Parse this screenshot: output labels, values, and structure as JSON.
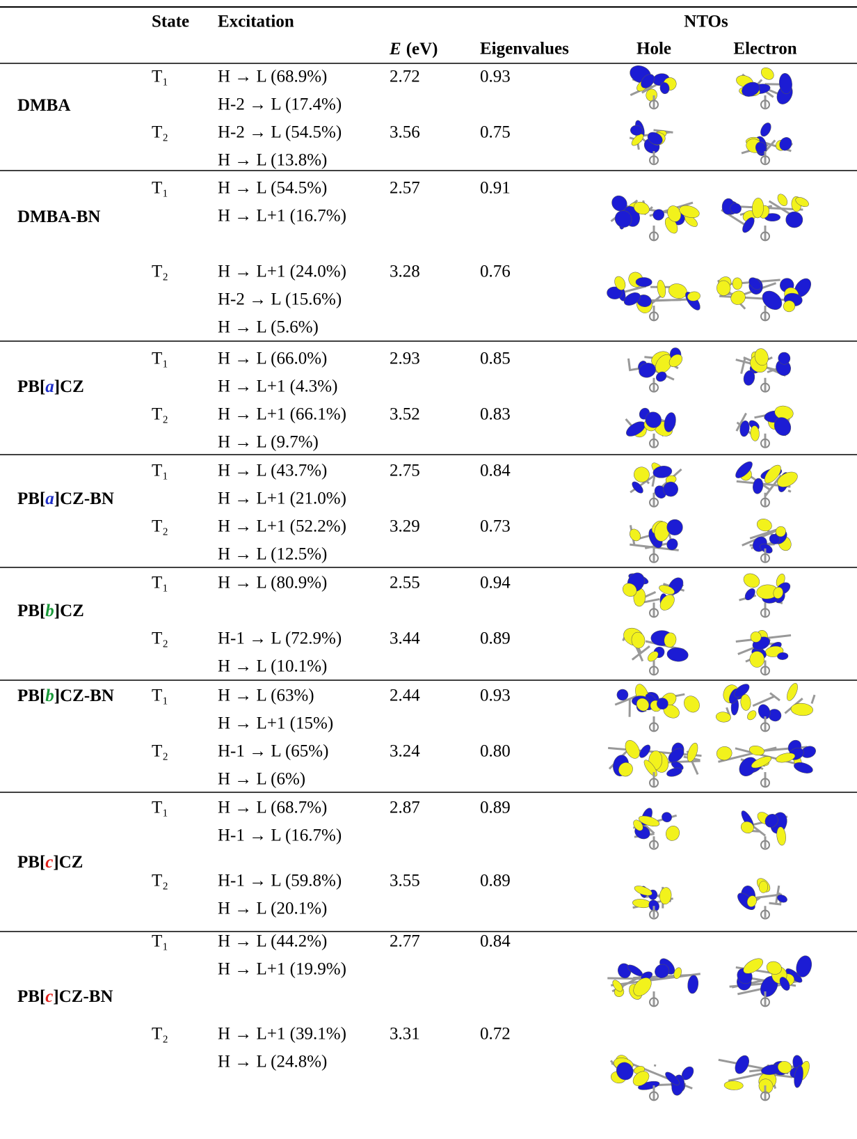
{
  "header": {
    "state": "State",
    "excitation": "Excitation",
    "e_symbol": "E",
    "e_unit": "(eV)",
    "eigenvalues": "Eigenvalues",
    "ntos": "NTOs",
    "hole": "Hole",
    "electron": "Electron"
  },
  "table": {
    "rows": [
      {
        "name": [
          {
            "text": "DMBA"
          }
        ],
        "states": [
          {
            "state": "T₁",
            "excitations": [
              "H → L (68.9%)",
              "H-2 → L (17.4%)"
            ],
            "energy": "2.72",
            "eigenvalue": "0.93"
          },
          {
            "state": "T₂",
            "excitations": [
              "H-2 → L (54.5%)",
              "H → L (13.8%)"
            ],
            "energy": "3.56",
            "eigenvalue": "0.75"
          }
        ]
      },
      {
        "name": [
          {
            "text": "DMBA-BN"
          }
        ],
        "states": [
          {
            "state": "T₁",
            "excitations": [
              "H → L (54.5%)",
              "H → L+1 (16.7%)"
            ],
            "energy": "2.57",
            "eigenvalue": "0.91"
          },
          {
            "state": "T₂",
            "excitations": [
              "H → L+1 (24.0%)",
              "H-2 → L (15.6%)",
              "H → L (5.6%)"
            ],
            "energy": "3.28",
            "eigenvalue": "0.76"
          }
        ]
      },
      {
        "name": [
          {
            "text": "PB["
          },
          {
            "text": "a",
            "color": "#1f2fc8",
            "italic": true
          },
          {
            "text": "]CZ"
          }
        ],
        "states": [
          {
            "state": "T₁",
            "excitations": [
              "H → L (66.0%)",
              "H → L+1 (4.3%)"
            ],
            "energy": "2.93",
            "eigenvalue": "0.85"
          },
          {
            "state": "T₂",
            "excitations": [
              "H → L+1 (66.1%)",
              "H → L (9.7%)"
            ],
            "energy": "3.52",
            "eigenvalue": "0.83"
          }
        ]
      },
      {
        "name": [
          {
            "text": "PB["
          },
          {
            "text": "a",
            "color": "#1f2fc8",
            "italic": true
          },
          {
            "text": "]CZ-BN"
          }
        ],
        "states": [
          {
            "state": "T₁",
            "excitations": [
              "H → L (43.7%)",
              "H → L+1 (21.0%)"
            ],
            "energy": "2.75",
            "eigenvalue": "0.84"
          },
          {
            "state": "T₂",
            "excitations": [
              "H → L+1 (52.2%)",
              "H → L (12.5%)"
            ],
            "energy": "3.29",
            "eigenvalue": "0.73"
          }
        ]
      },
      {
        "name": [
          {
            "text": "PB["
          },
          {
            "text": "b",
            "color": "#1a9a3a",
            "italic": true
          },
          {
            "text": "]CZ"
          }
        ],
        "states": [
          {
            "state": "T₁",
            "excitations": [
              "H → L (80.9%)"
            ],
            "energy": "2.55",
            "eigenvalue": "0.94"
          },
          {
            "state": "T₂",
            "excitations": [
              "H-1 → L (72.9%)",
              "H → L (10.1%)"
            ],
            "energy": "3.44",
            "eigenvalue": "0.89"
          }
        ]
      },
      {
        "name": [
          {
            "text": "PB["
          },
          {
            "text": "b",
            "color": "#1a9a3a",
            "italic": true
          },
          {
            "text": "]CZ-BN"
          }
        ],
        "states": [
          {
            "state": "T₁",
            "excitations": [
              "H → L (63%)",
              "H → L+1 (15%)"
            ],
            "energy": "2.44",
            "eigenvalue": "0.93"
          },
          {
            "state": "T₂",
            "excitations": [
              "H-1 → L (65%)",
              "H → L (6%)"
            ],
            "energy": "3.24",
            "eigenvalue": "0.80"
          }
        ]
      },
      {
        "name": [
          {
            "text": "PB["
          },
          {
            "text": "c",
            "color": "#e0201a",
            "italic": true
          },
          {
            "text": "]CZ"
          }
        ],
        "states": [
          {
            "state": "T₁",
            "excitations": [
              "H → L (68.7%)",
              "H-1 → L (16.7%)"
            ],
            "energy": "2.87",
            "eigenvalue": "0.89"
          },
          {
            "state": "T₂",
            "excitations": [
              "H-1 → L (59.8%)",
              "H → L (20.1%)"
            ],
            "energy": "3.55",
            "eigenvalue": "0.89"
          }
        ]
      },
      {
        "name": [
          {
            "text": "PB["
          },
          {
            "text": "c",
            "color": "#e0201a",
            "italic": true
          },
          {
            "text": "]CZ-BN"
          }
        ],
        "states": [
          {
            "state": "T₁",
            "excitations": [
              "H → L (44.2%)",
              "H → L+1 (19.9%)"
            ],
            "energy": "2.77",
            "eigenvalue": "0.84"
          },
          {
            "state": "T₂",
            "excitations": [
              "H → L+1 (39.1%)",
              "H → L (24.8%)"
            ],
            "energy": "3.31",
            "eigenvalue": "0.72"
          }
        ]
      }
    ]
  }
}
